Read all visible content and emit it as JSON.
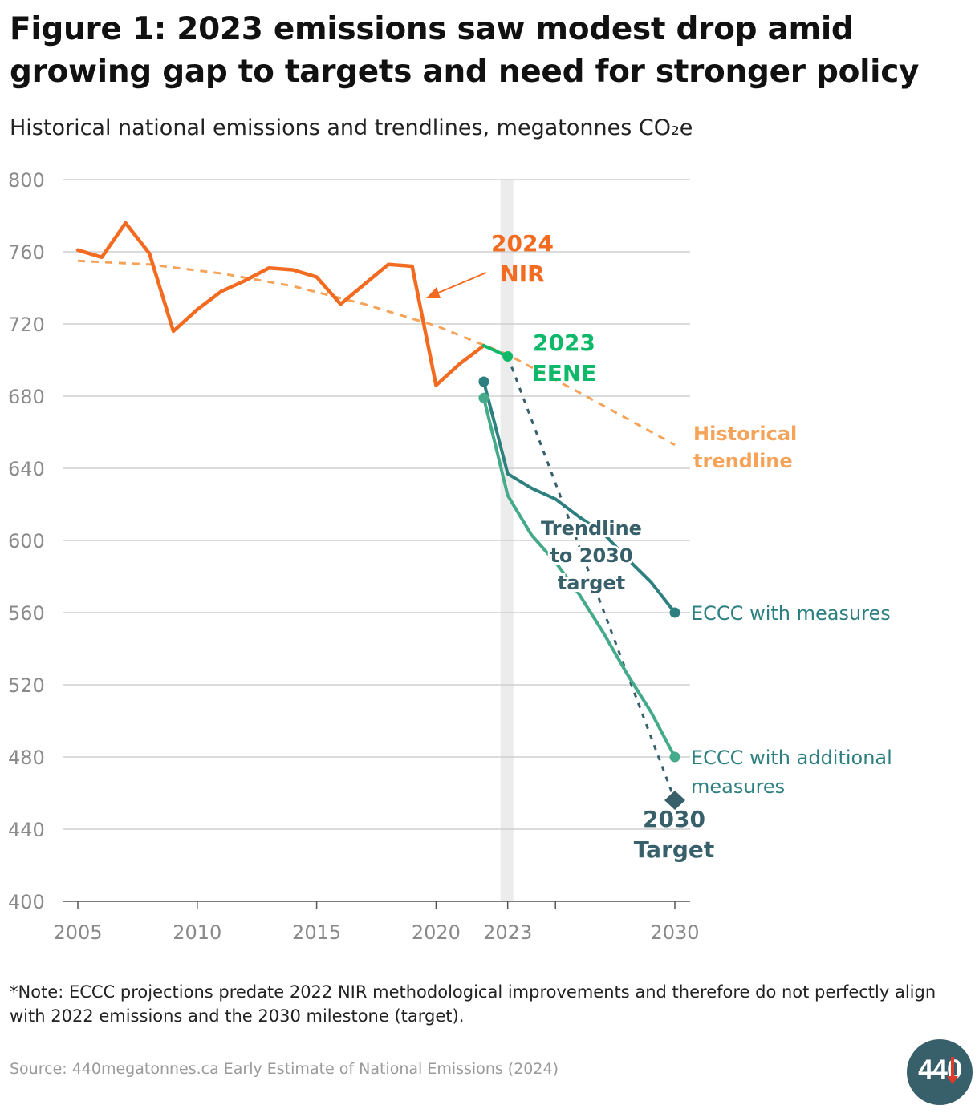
{
  "header": {
    "title": "Figure 1: 2023 emissions saw modest drop amid growing gap to targets and need for stronger policy",
    "subtitle": "Historical national emissions and trendlines, megatonnes CO₂e"
  },
  "footer": {
    "note": "*Note: ECCC projections predate 2022 NIR methodological improvements and therefore do not perfectly align with 2022 emissions and the 2030 milestone (target).",
    "source": "Source: 440megatonnes.ca Early Estimate of National Emissions (2024)",
    "logo_text": "440"
  },
  "colors": {
    "nir": "#f26b21",
    "eene": "#10b96a",
    "historical": "#f6a35a",
    "target": "#37606a",
    "with_measures": "#2e8080",
    "additional": "#45aa8a",
    "grid": "#c8c8c8",
    "axis_text": "#8a8a8a",
    "highlight_band": "#ececec"
  },
  "chart_data": {
    "type": "line",
    "ylim": [
      400,
      800
    ],
    "xlim": [
      2005,
      2030
    ],
    "yticks": [
      "400",
      "440",
      "480",
      "520",
      "560",
      "600",
      "640",
      "680",
      "720",
      "760",
      "800"
    ],
    "xticks": [
      "2005",
      "2010",
      "2015",
      "2020",
      "2023",
      "2030"
    ],
    "xtick_marks": [
      2005,
      2010,
      2015,
      2020,
      2023,
      2025,
      2030
    ],
    "highlight_year": 2023,
    "grid": "horizontal",
    "series": [
      {
        "name": "2024 NIR",
        "style": "solid",
        "x": [
          2005,
          2006,
          2007,
          2008,
          2009,
          2010,
          2011,
          2012,
          2013,
          2014,
          2015,
          2016,
          2017,
          2018,
          2019,
          2020,
          2021,
          2022
        ],
        "y": [
          761,
          757,
          776,
          759,
          716,
          728,
          738,
          744,
          751,
          750,
          746,
          731,
          742,
          753,
          752,
          686,
          698,
          708
        ]
      },
      {
        "name": "2023 EENE",
        "style": "solid",
        "x": [
          2022,
          2023
        ],
        "y": [
          708,
          702
        ]
      },
      {
        "name": "Historical trendline",
        "style": "dashed",
        "x": [
          2005,
          2008,
          2011,
          2014,
          2017,
          2020,
          2023,
          2026,
          2030
        ],
        "y": [
          755,
          753,
          748,
          741,
          731,
          719,
          703,
          682,
          653
        ]
      },
      {
        "name": "Trendline to 2030 target",
        "style": "dotted",
        "x": [
          2023,
          2030
        ],
        "y": [
          702,
          456
        ]
      },
      {
        "name": "ECCC with measures",
        "style": "solid",
        "x": [
          2022,
          2023,
          2024,
          2025,
          2026,
          2027,
          2028,
          2029,
          2030
        ],
        "y": [
          688,
          637,
          629,
          623,
          613,
          604,
          590,
          577,
          560
        ]
      },
      {
        "name": "ECCC with additional measures",
        "style": "solid",
        "x": [
          2022,
          2023,
          2024,
          2025,
          2026,
          2027,
          2028,
          2029,
          2030
        ],
        "y": [
          679,
          625,
          603,
          588,
          570,
          549,
          526,
          505,
          480
        ]
      }
    ],
    "target": {
      "name": "2030 Target",
      "x": 2030,
      "y": 456
    },
    "annotations": {
      "nir": [
        "2024",
        "NIR"
      ],
      "eene": [
        "2023",
        "EENE"
      ],
      "historical": [
        "Historical",
        "trendline"
      ],
      "trendline": [
        "Trendline",
        "to 2030",
        "target"
      ],
      "with_measures": [
        "ECCC with measures"
      ],
      "additional": [
        "ECCC with additional",
        "measures"
      ],
      "target": [
        "2030",
        "Target"
      ]
    }
  }
}
